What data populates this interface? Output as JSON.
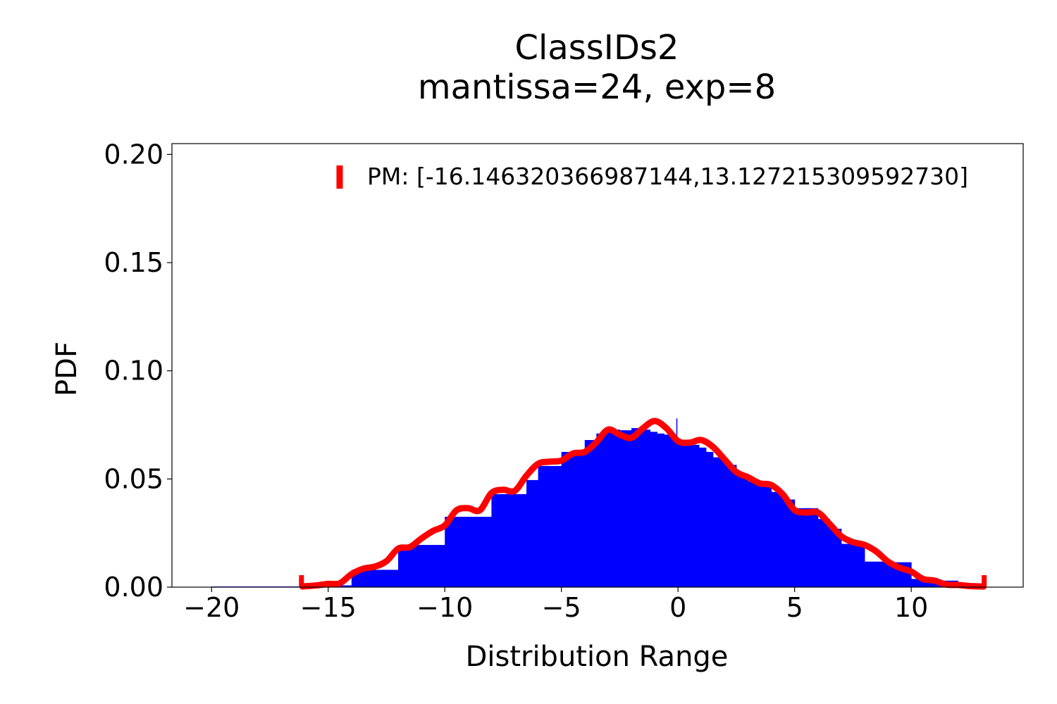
{
  "chart_data": {
    "type": "bar",
    "title": "ClassIDs2",
    "subtitle": "mantissa=24, exp=8",
    "xlabel": "Distribution Range",
    "ylabel": "PDF",
    "xlim": [
      -21.7,
      14.8
    ],
    "ylim": [
      0,
      0.205
    ],
    "xticks": [
      -20,
      -15,
      -10,
      -5,
      0,
      5,
      10
    ],
    "xtick_labels": [
      "−20",
      "−15",
      "−10",
      "−5",
      "0",
      "5",
      "10"
    ],
    "yticks": [
      0.0,
      0.05,
      0.1,
      0.15,
      0.2
    ],
    "ytick_labels": [
      "0.00",
      "0.05",
      "0.10",
      "0.15",
      "0.20"
    ],
    "grid": false,
    "legend": {
      "placement": "top-right",
      "entries": [
        {
          "label": "PM: [-16.146320366987144,13.127215309592730]",
          "color": "#ff0000",
          "marker": "vertical-bar"
        }
      ]
    },
    "colors": {
      "histogram": "#0000ff",
      "kde": "#ff0000"
    },
    "histogram": {
      "bins": [
        [
          -20,
          -16,
          0.0003
        ],
        [
          -16,
          -14,
          0.0008
        ],
        [
          -14,
          -13,
          0.008
        ],
        [
          -13,
          -12,
          0.008
        ],
        [
          -12,
          -11,
          0.0195
        ],
        [
          -11,
          -10,
          0.0195
        ],
        [
          -10,
          -9.5,
          0.0325
        ],
        [
          -9.5,
          -8,
          0.0325
        ],
        [
          -8,
          -7,
          0.043
        ],
        [
          -7,
          -6.5,
          0.043
        ],
        [
          -6.5,
          -6,
          0.0495
        ],
        [
          -6,
          -5,
          0.056
        ],
        [
          -5,
          -4.5,
          0.0625
        ],
        [
          -4.5,
          -4,
          0.0625
        ],
        [
          -4,
          -3.5,
          0.068
        ],
        [
          -3.5,
          -3,
          0.071
        ],
        [
          -3,
          -2.5,
          0.0728
        ],
        [
          -2.5,
          -2,
          0.0725
        ],
        [
          -2,
          -1.5,
          0.0735
        ],
        [
          -1.5,
          -1.2,
          0.0728
        ],
        [
          -1.2,
          -0.9,
          0.0718
        ],
        [
          -0.9,
          -0.6,
          0.071
        ],
        [
          -0.6,
          -0.3,
          0.0705
        ],
        [
          -0.3,
          0,
          0.069
        ],
        [
          0,
          0.3,
          0.0668
        ],
        [
          0.3,
          0.6,
          0.0662
        ],
        [
          0.6,
          0.9,
          0.0658
        ],
        [
          0.9,
          1.2,
          0.0645
        ],
        [
          1.2,
          1.5,
          0.0625
        ],
        [
          1.5,
          2,
          0.06
        ],
        [
          2,
          2.5,
          0.0565
        ],
        [
          2.5,
          3,
          0.0525
        ],
        [
          3,
          3.5,
          0.0488
        ],
        [
          3.5,
          4,
          0.0468
        ],
        [
          4,
          4.5,
          0.044
        ],
        [
          4.5,
          5,
          0.0405
        ],
        [
          5,
          6,
          0.0365
        ],
        [
          6,
          6.5,
          0.0315
        ],
        [
          6.5,
          7,
          0.027
        ],
        [
          7,
          8,
          0.02
        ],
        [
          8,
          9,
          0.0118
        ],
        [
          9,
          10,
          0.0115
        ],
        [
          10,
          10.5,
          0.0038
        ],
        [
          10.5,
          11,
          0.0035
        ],
        [
          11,
          12,
          0.003
        ],
        [
          12,
          13,
          0.001
        ]
      ],
      "spikes": [
        [
          -0.05,
          0.078
        ],
        [
          -0.03,
          0.051
        ]
      ]
    },
    "kde": {
      "x": [
        -16.1,
        -15.5,
        -15,
        -14.5,
        -14,
        -13.5,
        -13,
        -12.5,
        -12,
        -11.5,
        -11,
        -10.5,
        -10,
        -9.5,
        -9,
        -8.5,
        -8,
        -7.5,
        -7,
        -6.5,
        -6,
        -5.5,
        -5,
        -4.5,
        -4,
        -3.5,
        -3,
        -2.5,
        -2,
        -1.5,
        -1,
        -0.5,
        0,
        0.5,
        1,
        1.5,
        2,
        2.5,
        3,
        3.5,
        4,
        4.5,
        5,
        5.5,
        6,
        6.5,
        7,
        7.5,
        8,
        8.5,
        9,
        9.5,
        10,
        10.5,
        11,
        11.5,
        12,
        12.5,
        13.1
      ],
      "y": [
        0.0003,
        0.0008,
        0.0015,
        0.0018,
        0.006,
        0.0085,
        0.0095,
        0.012,
        0.0178,
        0.0185,
        0.0225,
        0.026,
        0.0285,
        0.0355,
        0.0365,
        0.0355,
        0.0435,
        0.045,
        0.0445,
        0.0515,
        0.057,
        0.058,
        0.0585,
        0.0618,
        0.0625,
        0.067,
        0.0728,
        0.0705,
        0.069,
        0.0735,
        0.0768,
        0.0735,
        0.0675,
        0.0668,
        0.068,
        0.0648,
        0.059,
        0.0532,
        0.0508,
        0.048,
        0.0472,
        0.0428,
        0.0356,
        0.0345,
        0.0345,
        0.0292,
        0.0235,
        0.0208,
        0.0195,
        0.0165,
        0.0118,
        0.009,
        0.0072,
        0.0038,
        0.003,
        0.0012,
        0.001,
        0.0005,
        0.0003
      ]
    },
    "pm_markers": [
      -16.146320366987144,
      13.12721530959273
    ]
  }
}
